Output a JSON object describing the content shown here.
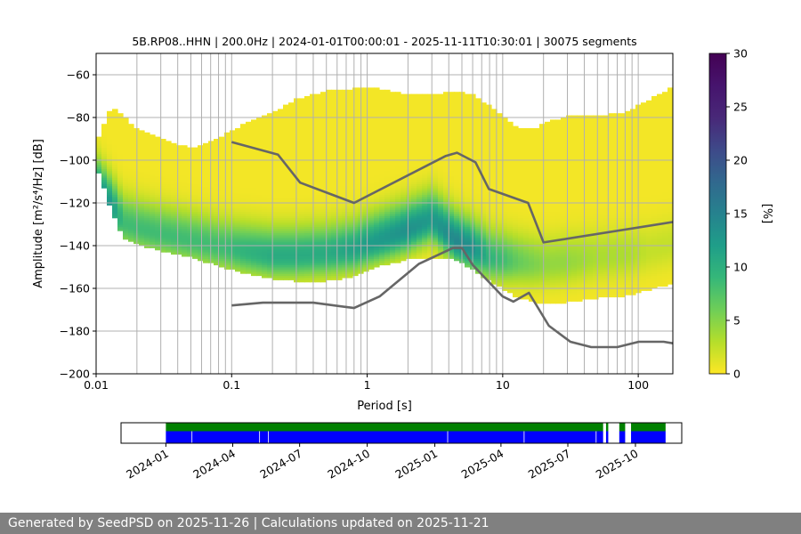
{
  "footer": {
    "generated_text": "Generated by SeedPSD on 2025-11-26 | Calculations updated on 2025-11-21"
  },
  "chart_data": [
    {
      "type": "heatmap",
      "title": "5B.RP08..HHN | 200.0Hz | 2024-01-01T00:00:01 - 2025-11-11T10:30:01 | 30075 segments",
      "xlabel": "Period [s]",
      "ylabel": "Amplitude [m²/s⁴/Hz] [dB]",
      "x_scale": "log",
      "xlim": [
        0.01,
        180
      ],
      "ylim": [
        -200,
        -50
      ],
      "x_ticks": [
        {
          "value": 0.01,
          "label": "0.01"
        },
        {
          "value": 0.1,
          "label": "0.1"
        },
        {
          "value": 1,
          "label": "1"
        },
        {
          "value": 10,
          "label": "10"
        },
        {
          "value": 100,
          "label": "100"
        }
      ],
      "y_ticks": [
        -60,
        -80,
        -100,
        -120,
        -140,
        -160,
        -180,
        -200
      ],
      "grid": true,
      "colorbar": {
        "label": "[%]",
        "min": 0,
        "max": 30,
        "ticks": [
          0,
          5,
          10,
          15,
          20,
          25,
          30
        ],
        "colormap": "viridis"
      },
      "psd_density": {
        "periods": [
          0.01,
          0.013,
          0.016,
          0.02,
          0.03,
          0.05,
          0.08,
          0.12,
          0.2,
          0.3,
          0.5,
          0.8,
          1.2,
          2,
          3,
          4.5,
          6,
          8,
          10,
          13,
          17,
          22,
          30,
          50,
          80,
          120,
          180
        ],
        "outer_upper": [
          -93,
          -75,
          -80,
          -86,
          -90,
          -95,
          -90,
          -84,
          -78,
          -72,
          -68,
          -67,
          -67,
          -70,
          -70,
          -68,
          -70,
          -75,
          -80,
          -86,
          -86,
          -82,
          -80,
          -80,
          -78,
          -72,
          -66
        ],
        "outer_lower": [
          -103,
          -124,
          -137,
          -140,
          -143,
          -146,
          -150,
          -153,
          -156,
          -157,
          -157,
          -155,
          -150,
          -147,
          -146,
          -147,
          -152,
          -157,
          -161,
          -165,
          -167,
          -167,
          -167,
          -165,
          -164,
          -161,
          -158
        ],
        "median": [
          -113,
          -122,
          -130,
          -132,
          -135,
          -138,
          -141,
          -143,
          -145,
          -145,
          -144,
          -142,
          -138,
          -133,
          -128,
          -138,
          -142,
          -146,
          -147,
          -148,
          -149,
          -149,
          -148,
          -146,
          -145,
          -143,
          -140
        ],
        "peak_percent": [
          14,
          12,
          8,
          8,
          8,
          8,
          8,
          9,
          10,
          10,
          10,
          11,
          12,
          13,
          12,
          14,
          13,
          9,
          8,
          6,
          5,
          4,
          4,
          3,
          3,
          2,
          2
        ]
      },
      "series": [
        {
          "key": "nhnm",
          "color": "#666666",
          "x": [
            0.1,
            0.22,
            0.32,
            0.8,
            3.8,
            4.6,
            6.3,
            7.9,
            15.4,
            20,
            354.8
          ],
          "y": [
            -91.5,
            -97.4,
            -110.5,
            -120.0,
            -98.0,
            -96.5,
            -101.0,
            -113.5,
            -120.0,
            -138.5,
            -126.0
          ]
        },
        {
          "key": "nlnm",
          "color": "#666666",
          "x": [
            0.1,
            0.17,
            0.4,
            0.8,
            1.24,
            2.4,
            4.3,
            5.0,
            6.0,
            10.0,
            12.0,
            15.6,
            21.9,
            31.6,
            45.0,
            70.0,
            101.0,
            154.0,
            180.0
          ],
          "y": [
            -168.0,
            -166.7,
            -166.7,
            -169.2,
            -163.7,
            -148.6,
            -141.1,
            -141.1,
            -149.0,
            -163.8,
            -166.2,
            -162.1,
            -177.5,
            -185.0,
            -187.5,
            -187.5,
            -185.0,
            -185.0,
            -185.7
          ]
        }
      ]
    },
    {
      "type": "bar",
      "title": "",
      "x_type": "date",
      "xlim": [
        "2023-11-01",
        "2025-12-03"
      ],
      "x_ticks": [
        "2024-01",
        "2024-04",
        "2024-07",
        "2024-10",
        "2025-01",
        "2025-04",
        "2025-07",
        "2025-10"
      ],
      "tracks": [
        {
          "key": "green",
          "color": "#008000",
          "spans": [
            [
              "2024-01-01",
              "2025-08-18"
            ],
            [
              "2025-08-22",
              "2025-08-25"
            ],
            [
              "2025-09-09",
              "2025-09-17"
            ],
            [
              "2025-09-25",
              "2025-11-11"
            ]
          ]
        },
        {
          "key": "blue",
          "color": "#0000ff",
          "spans": [
            [
              "2024-01-01",
              "2024-02-05"
            ],
            [
              "2024-02-06",
              "2024-05-07"
            ],
            [
              "2024-05-08",
              "2024-05-19"
            ],
            [
              "2024-05-20",
              "2025-01-18"
            ],
            [
              "2025-01-19",
              "2025-05-02"
            ],
            [
              "2025-05-03",
              "2025-08-08"
            ],
            [
              "2025-08-09",
              "2025-08-18"
            ],
            [
              "2025-08-22",
              "2025-08-25"
            ],
            [
              "2025-09-09",
              "2025-09-17"
            ],
            [
              "2025-09-25",
              "2025-11-11"
            ]
          ]
        }
      ]
    }
  ]
}
